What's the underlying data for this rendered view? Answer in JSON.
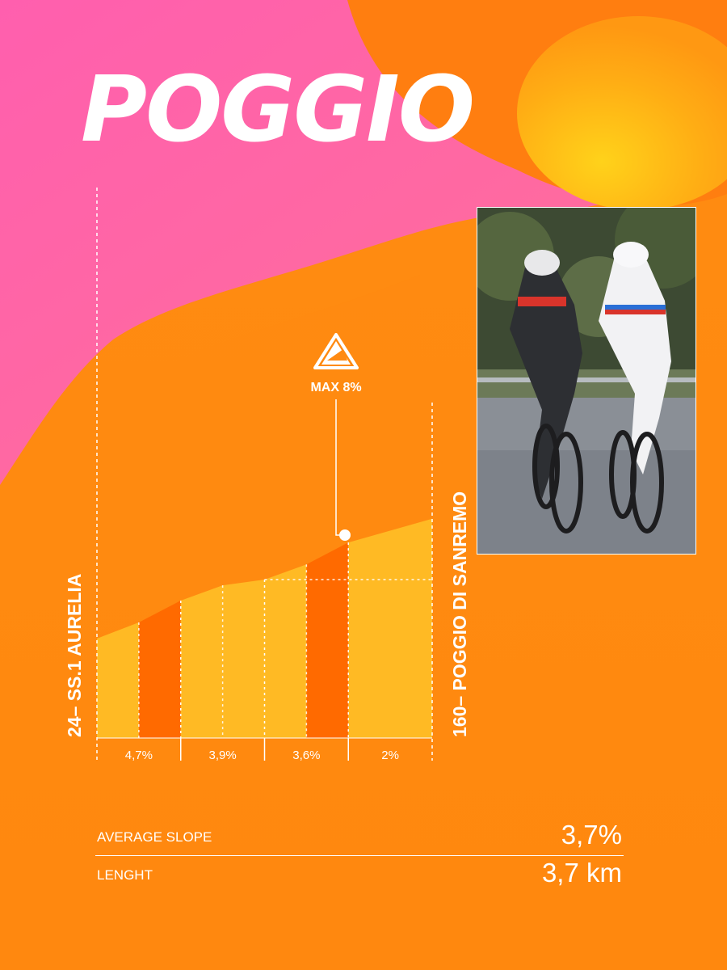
{
  "title": "POGGIO",
  "max_badge": "MAX 8%",
  "start_label": "24– SS.1 AURELIA",
  "end_label": "160– POGGIO DI SANREMO",
  "stats": [
    {
      "label": "AVERAGE SLOPE",
      "value": "3,7%"
    },
    {
      "label": "LENGHT",
      "value": "3,7 km"
    }
  ],
  "colors": {
    "background": "#ff8a10",
    "pink": "#ff62a8",
    "bar_light": "#ffba24",
    "bar_highlight": "#ff6a00",
    "text": "#ffffff"
  },
  "chart_data": {
    "type": "area",
    "title": "POGGIO",
    "x_start": "24– SS.1 AURELIA",
    "x_end": "160– POGGIO DI SANREMO",
    "ylim": [
      24,
      160
    ],
    "segments": [
      {
        "label": "4,7%",
        "slope": 4.7,
        "bars": [
          {
            "start": 24,
            "end": 41,
            "highlight": false
          },
          {
            "start": 41,
            "end": 64,
            "highlight": true
          }
        ]
      },
      {
        "label": "3,9%",
        "slope": 3.9,
        "bars": [
          {
            "start": 64,
            "end": 80,
            "highlight": false
          },
          {
            "start": 80,
            "end": 86,
            "highlight": false
          }
        ]
      },
      {
        "label": "3,6%",
        "slope": 3.6,
        "bars": [
          {
            "start": 86,
            "end": 102,
            "highlight": false
          },
          {
            "start": 102,
            "end": 125,
            "highlight": true
          }
        ]
      },
      {
        "label": "2%",
        "slope": 2.0,
        "bars": [
          {
            "start": 125,
            "end": 150,
            "highlight": false
          }
        ]
      }
    ],
    "max_gradient": {
      "label": "MAX 8%",
      "value": 8
    }
  }
}
